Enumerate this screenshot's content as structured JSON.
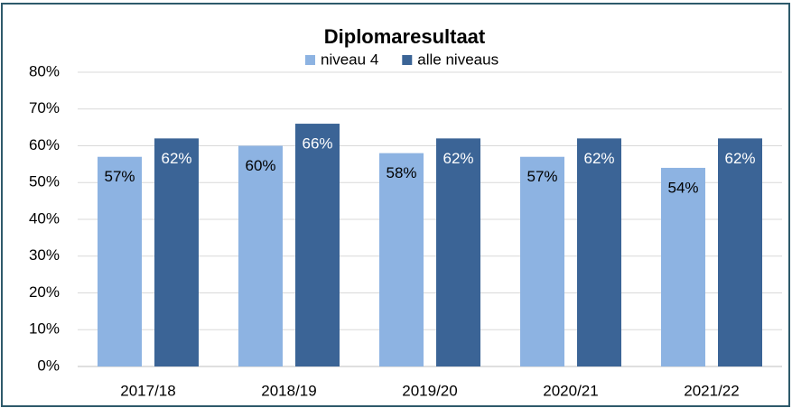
{
  "chart_data": {
    "type": "bar",
    "title": "Diplomaresultaat",
    "categories": [
      "2017/18",
      "2018/19",
      "2019/20",
      "2020/21",
      "2021/22"
    ],
    "series": [
      {
        "name": "niveau 4",
        "color": "#8db3e2",
        "values": [
          57,
          60,
          58,
          57,
          54
        ],
        "value_labels": [
          "57%",
          "60%",
          "58%",
          "57%",
          "54%"
        ]
      },
      {
        "name": "alle niveaus",
        "color": "#3b6496",
        "values": [
          62,
          66,
          62,
          62,
          62
        ],
        "value_labels": [
          "62%",
          "66%",
          "62%",
          "62%",
          "62%"
        ]
      }
    ],
    "ylim": [
      0,
      80
    ],
    "yticks": [
      {
        "value": 0,
        "label": "0%"
      },
      {
        "value": 10,
        "label": "10%"
      },
      {
        "value": 20,
        "label": "20%"
      },
      {
        "value": 30,
        "label": "30%"
      },
      {
        "value": 40,
        "label": "40%"
      },
      {
        "value": 50,
        "label": "50%"
      },
      {
        "value": 60,
        "label": "60%"
      },
      {
        "value": 70,
        "label": "70%"
      },
      {
        "value": 80,
        "label": "80%"
      }
    ],
    "grid": true,
    "legend": "top"
  }
}
